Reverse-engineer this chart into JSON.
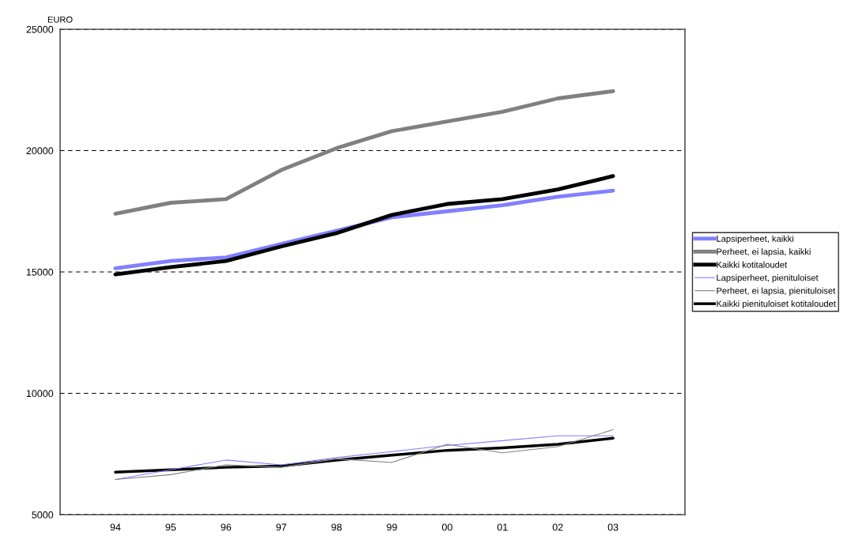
{
  "chart_data": {
    "type": "line",
    "ylabel": "EURO",
    "categories": [
      "94",
      "95",
      "96",
      "97",
      "98",
      "99",
      "00",
      "01",
      "02",
      "03"
    ],
    "ylim": [
      5000,
      25000
    ],
    "yticks": [
      5000,
      10000,
      15000,
      20000,
      25000
    ],
    "grid": "y",
    "legend": "right",
    "marker": "none",
    "line_style": "solid",
    "series": [
      {
        "name": "Lapsiperheet, kaikki",
        "color": "#8080ff",
        "values": [
          15150,
          15450,
          15600,
          16150,
          16700,
          17250,
          17500,
          17750,
          18100,
          18350
        ]
      },
      {
        "name": "Perheet, ei lapsia, kaikki",
        "color": "#808080",
        "values": [
          17400,
          17850,
          18000,
          19200,
          20100,
          20800,
          21200,
          21600,
          22150,
          22450
        ]
      },
      {
        "name": "Kaikki kotitaloudet",
        "color": "#000000",
        "values": [
          14900,
          15200,
          15450,
          16050,
          16600,
          17350,
          17800,
          18000,
          18400,
          18950
        ]
      },
      {
        "name": "Lapsiperheet, pienituloiset",
        "color": "#8080ff",
        "values": [
          6450,
          6850,
          7250,
          7050,
          7350,
          7600,
          7850,
          8050,
          8250,
          8250
        ]
      },
      {
        "name": "Perheet, ei lapsia, pienituloiset",
        "color": "#808080",
        "values": [
          6450,
          6650,
          7050,
          6950,
          7300,
          7150,
          7900,
          7550,
          7800,
          8500
        ]
      },
      {
        "name": "Kaikki pienituloiset kotitaloudet",
        "color": "#000000",
        "values": [
          6750,
          6850,
          6950,
          7000,
          7250,
          7450,
          7650,
          7750,
          7900,
          8150
        ]
      }
    ]
  }
}
